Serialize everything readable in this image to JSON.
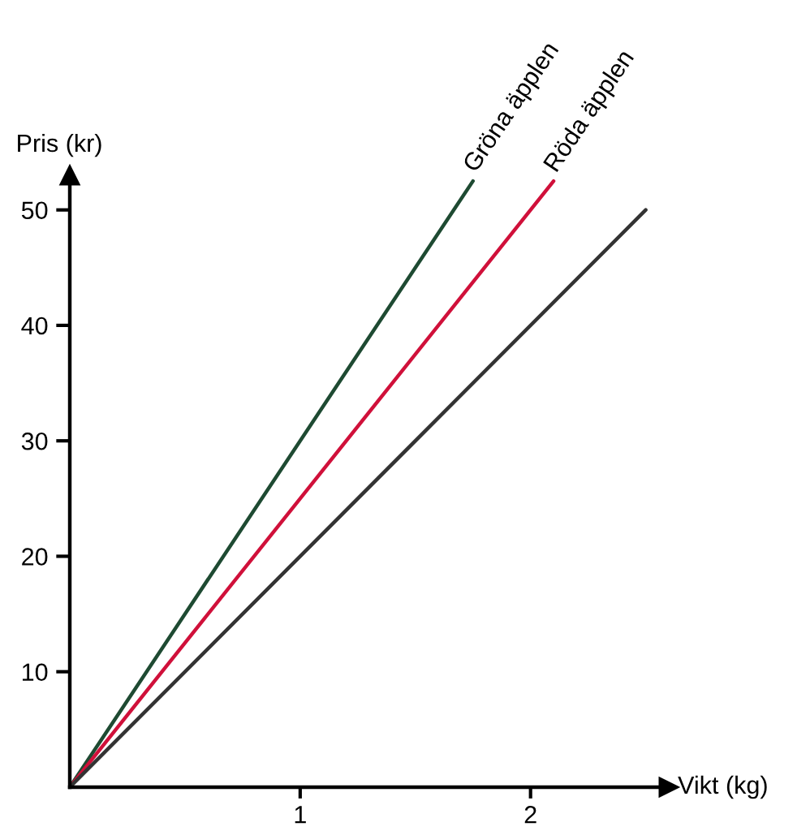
{
  "chart_data": {
    "type": "line",
    "xlabel": "Vikt (kg)",
    "ylabel": "Pris (kr)",
    "series": [
      {
        "name": "Gröna äpplen",
        "color": "#1e4a32",
        "x": [
          0,
          1.75
        ],
        "values": [
          0,
          52.5
        ]
      },
      {
        "name": "Röda äpplen",
        "color": "#d0103a",
        "x": [
          0,
          2.1
        ],
        "values": [
          0,
          52.5
        ]
      },
      {
        "color": "#333333",
        "x": [
          0,
          2.5
        ],
        "values": [
          0,
          50
        ]
      }
    ],
    "xlim": [
      0,
      2.6
    ],
    "ylim": [
      0,
      53
    ],
    "xticks": [
      1,
      2
    ],
    "yticks": [
      10,
      20,
      30,
      40,
      50
    ],
    "grid": false,
    "legend": false
  }
}
